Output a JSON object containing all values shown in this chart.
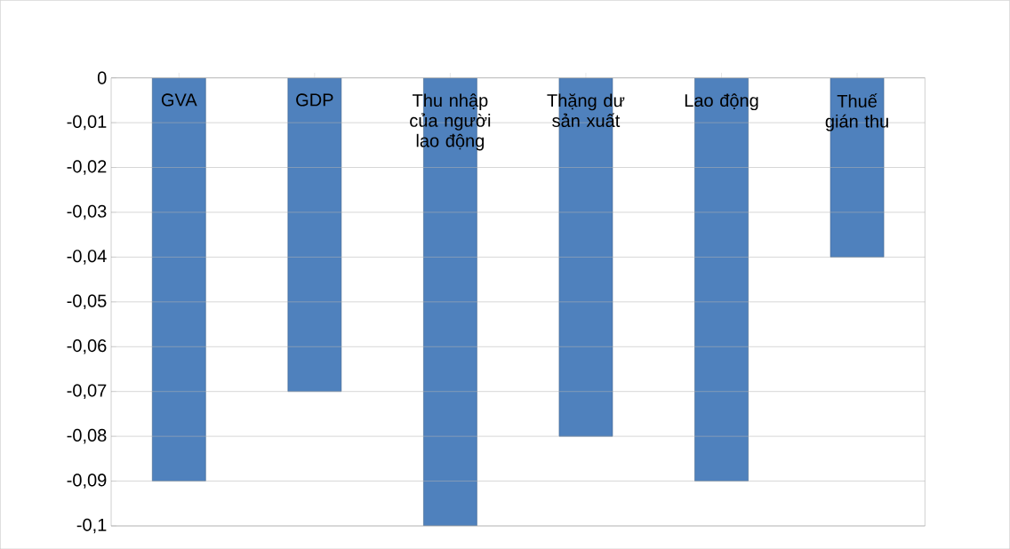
{
  "chart_data": {
    "type": "bar",
    "categories": [
      "GVA",
      "GDP",
      "Thu nhập của người lao động",
      "Thặng dư sản xuất",
      "Lao động",
      "Thuế gián thu"
    ],
    "values": [
      -0.09,
      -0.07,
      -0.1,
      -0.08,
      -0.09,
      -0.04
    ],
    "color": "#4f81bd",
    "ylim": [
      -0.1,
      0
    ],
    "yticks": [
      0,
      {
        "value": -0.01,
        "label": "-0,01"
      },
      {
        "value": -0.02,
        "label": "-0,02"
      },
      {
        "value": -0.03,
        "label": "-0,03"
      },
      {
        "value": -0.04,
        "label": "-0,04"
      },
      {
        "value": -0.05,
        "label": "-0,05"
      },
      {
        "value": -0.06,
        "label": "-0,06"
      },
      {
        "value": -0.07,
        "label": "-0,07"
      },
      {
        "value": -0.08,
        "label": "-0,08"
      },
      {
        "value": -0.09,
        "label": "-0,09"
      },
      {
        "value": -0.1,
        "label": "-0,1"
      }
    ],
    "grid": "y"
  }
}
